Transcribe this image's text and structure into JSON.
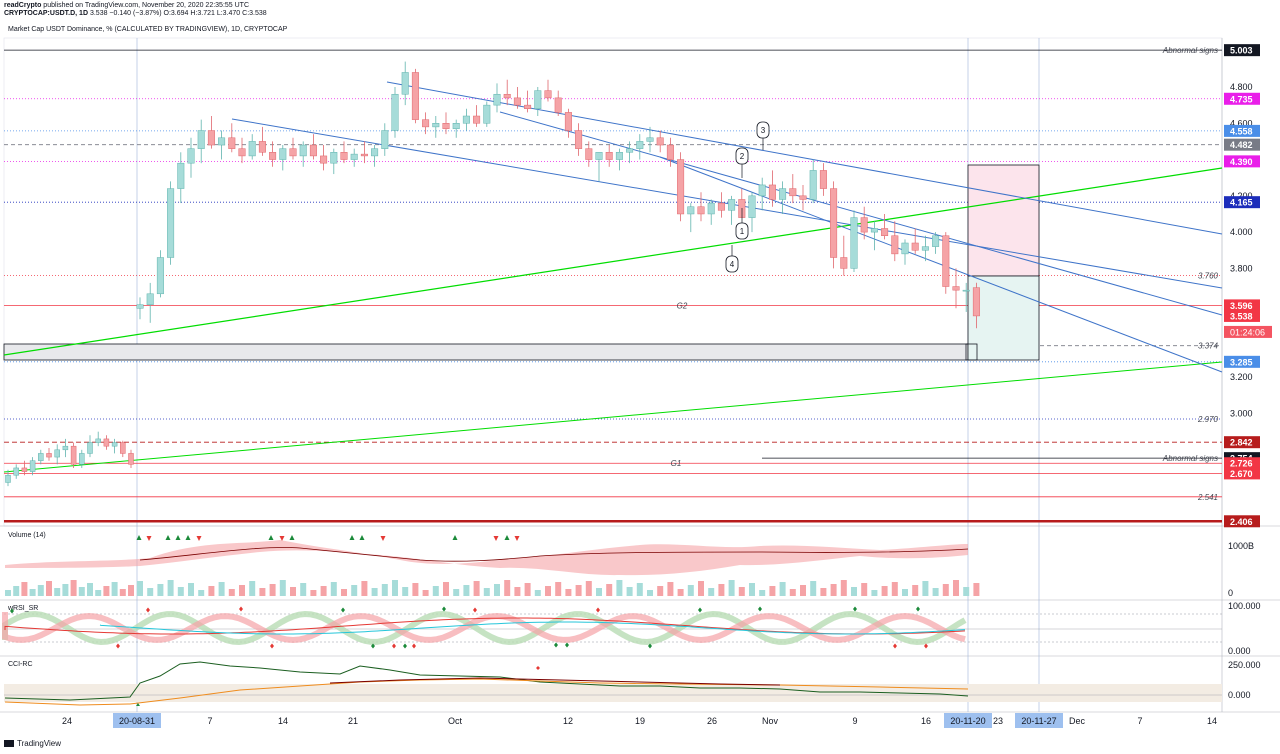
{
  "header": {
    "author": "readCrypto",
    "published_text": "published on TradingView.com, November 20, 2020 22:35:55 UTC",
    "symbol": "CRYPTOCAP:USDT.D, 1D",
    "ohlc_text": "3.538  −0.140 (−3.87%)  O:3.694  H:3.721  L:3.470  C:3.538"
  },
  "symbol_title": "Market Cap USDT Dominance, % (CALCULATED BY TRADINGVIEW), 1D, CRYPTOCAP",
  "colors": {
    "up": "#a6dcd9",
    "down": "#f5a3a6",
    "green_line": "#00dd00",
    "blue_line": "#3f74c9",
    "price_tag": "#f23645",
    "magenta": "#e91ee9",
    "blue_tag": "#4a8ee8"
  },
  "chart_data": {
    "type": "candlestick",
    "timeframe": "1D",
    "ylim": [
      2.38,
      5.07
    ],
    "x_ticks": [
      "24",
      "20-08-31",
      "7",
      "14",
      "21",
      "Oct",
      "12",
      "19",
      "26",
      "Nov",
      "9",
      "16",
      "20-11-20",
      "23",
      "20-11-27",
      "Dec",
      "7",
      "14"
    ],
    "last_price": 3.538,
    "countdown": "01:24:06",
    "price_axis_labels": [
      "4.800",
      "4.600",
      "4.200",
      "4.000",
      "3.800",
      "3.200",
      "3.000"
    ],
    "price_levels": [
      {
        "value": 5.003,
        "label": "5.003",
        "note": "Abnormal signs",
        "color": "#131722"
      },
      {
        "value": 4.735,
        "label": "4.735",
        "note": "",
        "color": "#e91ee9"
      },
      {
        "value": 4.558,
        "label": "4.558",
        "note": "",
        "color": "#4a8ee8"
      },
      {
        "value": 4.482,
        "label": "4.482",
        "note": "",
        "color": "#787b86"
      },
      {
        "value": 4.39,
        "label": "4.390",
        "note": "",
        "color": "#e91ee9"
      },
      {
        "value": 4.165,
        "label": "4.165",
        "note": "",
        "color": "#1c2dbb"
      },
      {
        "value": 3.76,
        "label": "",
        "note": "3.760",
        "color": "#f23645"
      },
      {
        "value": 3.596,
        "label": "3.596",
        "note": "G2",
        "color": "#f23645"
      },
      {
        "value": 3.374,
        "label": "",
        "note": "3.374",
        "color": "#787b86"
      },
      {
        "value": 3.285,
        "label": "3.285",
        "note": "",
        "color": "#4a8ee8"
      },
      {
        "value": 2.97,
        "label": "",
        "note": "2.970",
        "color": "#1c2dbb"
      },
      {
        "value": 2.842,
        "label": "2.842",
        "note": "",
        "color": "#b71c1c"
      },
      {
        "value": 2.754,
        "label": "2.754",
        "note": "Abnormal signs",
        "color": "#131722"
      },
      {
        "value": 2.726,
        "label": "2.726",
        "note": "G1",
        "color": "#f23645"
      },
      {
        "value": 2.67,
        "label": "2.670",
        "note": "",
        "color": "#f23645"
      },
      {
        "value": 2.541,
        "label": "",
        "note": "2.541",
        "color": "#f23645"
      },
      {
        "value": 2.406,
        "label": "2.406",
        "note": "",
        "color": "#b71c1c"
      }
    ],
    "wave_labels": [
      "1",
      "2",
      "3",
      "4"
    ],
    "candles": [
      [
        2.62,
        2.69,
        2.6,
        2.66
      ],
      [
        2.66,
        2.72,
        2.64,
        2.7
      ],
      [
        2.7,
        2.74,
        2.66,
        2.68
      ],
      [
        2.68,
        2.76,
        2.66,
        2.74
      ],
      [
        2.74,
        2.8,
        2.72,
        2.78
      ],
      [
        2.78,
        2.81,
        2.74,
        2.76
      ],
      [
        2.76,
        2.83,
        2.72,
        2.8
      ],
      [
        2.8,
        2.86,
        2.76,
        2.82
      ],
      [
        2.82,
        2.84,
        2.7,
        2.72
      ],
      [
        2.72,
        2.8,
        2.7,
        2.78
      ],
      [
        2.78,
        2.88,
        2.76,
        2.84
      ],
      [
        2.84,
        2.9,
        2.82,
        2.86
      ],
      [
        2.86,
        2.88,
        2.8,
        2.82
      ],
      [
        2.82,
        2.86,
        2.78,
        2.84
      ],
      [
        2.84,
        2.85,
        2.76,
        2.78
      ],
      [
        2.78,
        2.8,
        2.7,
        2.72
      ],
      [
        3.58,
        3.64,
        3.52,
        3.6
      ],
      [
        3.6,
        3.72,
        3.5,
        3.66
      ],
      [
        3.66,
        3.9,
        3.64,
        3.86
      ],
      [
        3.86,
        4.28,
        3.82,
        4.24
      ],
      [
        4.24,
        4.44,
        4.16,
        4.38
      ],
      [
        4.38,
        4.52,
        4.3,
        4.46
      ],
      [
        4.46,
        4.62,
        4.38,
        4.56
      ],
      [
        4.56,
        4.64,
        4.46,
        4.48
      ],
      [
        4.48,
        4.56,
        4.4,
        4.52
      ],
      [
        4.52,
        4.6,
        4.44,
        4.46
      ],
      [
        4.46,
        4.52,
        4.38,
        4.42
      ],
      [
        4.42,
        4.54,
        4.4,
        4.5
      ],
      [
        4.5,
        4.58,
        4.42,
        4.44
      ],
      [
        4.44,
        4.5,
        4.36,
        4.4
      ],
      [
        4.4,
        4.48,
        4.34,
        4.46
      ],
      [
        4.46,
        4.52,
        4.4,
        4.42
      ],
      [
        4.42,
        4.5,
        4.36,
        4.48
      ],
      [
        4.48,
        4.54,
        4.4,
        4.42
      ],
      [
        4.42,
        4.48,
        4.34,
        4.38
      ],
      [
        4.38,
        4.46,
        4.32,
        4.44
      ],
      [
        4.44,
        4.5,
        4.38,
        4.4
      ],
      [
        4.4,
        4.46,
        4.36,
        4.43
      ],
      [
        4.43,
        4.5,
        4.38,
        4.42
      ],
      [
        4.42,
        4.48,
        4.36,
        4.46
      ],
      [
        4.46,
        4.6,
        4.42,
        4.56
      ],
      [
        4.56,
        4.8,
        4.52,
        4.76
      ],
      [
        4.76,
        4.94,
        4.7,
        4.88
      ],
      [
        4.88,
        4.9,
        4.6,
        4.62
      ],
      [
        4.62,
        4.66,
        4.54,
        4.58
      ],
      [
        4.58,
        4.64,
        4.52,
        4.6
      ],
      [
        4.6,
        4.66,
        4.54,
        4.57
      ],
      [
        4.57,
        4.62,
        4.52,
        4.6
      ],
      [
        4.6,
        4.68,
        4.56,
        4.64
      ],
      [
        4.64,
        4.7,
        4.58,
        4.6
      ],
      [
        4.6,
        4.72,
        4.58,
        4.7
      ],
      [
        4.7,
        4.82,
        4.66,
        4.76
      ],
      [
        4.76,
        4.84,
        4.7,
        4.74
      ],
      [
        4.74,
        4.8,
        4.68,
        4.7
      ],
      [
        4.7,
        4.78,
        4.66,
        4.68
      ],
      [
        4.68,
        4.8,
        4.64,
        4.78
      ],
      [
        4.78,
        4.84,
        4.72,
        4.74
      ],
      [
        4.74,
        4.78,
        4.64,
        4.66
      ],
      [
        4.66,
        4.68,
        4.52,
        4.56
      ],
      [
        4.56,
        4.6,
        4.42,
        4.46
      ],
      [
        4.46,
        4.5,
        4.36,
        4.4
      ],
      [
        4.4,
        4.44,
        4.28,
        4.44
      ],
      [
        4.44,
        4.48,
        4.36,
        4.4
      ],
      [
        4.4,
        4.46,
        4.34,
        4.44
      ],
      [
        4.44,
        4.5,
        4.38,
        4.46
      ],
      [
        4.46,
        4.54,
        4.4,
        4.5
      ],
      [
        4.5,
        4.58,
        4.44,
        4.52
      ],
      [
        4.52,
        4.56,
        4.44,
        4.48
      ],
      [
        4.48,
        4.52,
        4.36,
        4.4
      ],
      [
        4.4,
        4.44,
        4.06,
        4.1
      ],
      [
        4.1,
        4.16,
        4.0,
        4.14
      ],
      [
        4.14,
        4.22,
        4.06,
        4.1
      ],
      [
        4.1,
        4.18,
        4.04,
        4.16
      ],
      [
        4.16,
        4.22,
        4.08,
        4.12
      ],
      [
        4.12,
        4.2,
        4.04,
        4.18
      ],
      [
        4.18,
        4.24,
        4.1,
        4.08
      ],
      [
        4.08,
        4.22,
        4.0,
        4.2
      ],
      [
        4.2,
        4.3,
        4.12,
        4.26
      ],
      [
        4.26,
        4.34,
        4.14,
        4.18
      ],
      [
        4.18,
        4.28,
        4.1,
        4.24
      ],
      [
        4.24,
        4.32,
        4.16,
        4.2
      ],
      [
        4.2,
        4.26,
        4.12,
        4.18
      ],
      [
        4.18,
        4.4,
        4.16,
        4.34
      ],
      [
        4.34,
        4.38,
        4.2,
        4.24
      ],
      [
        4.24,
        4.28,
        3.8,
        3.86
      ],
      [
        3.86,
        3.98,
        3.76,
        3.8
      ],
      [
        3.8,
        4.12,
        3.78,
        4.08
      ],
      [
        4.08,
        4.14,
        3.96,
        4.0
      ],
      [
        4.0,
        4.06,
        3.9,
        4.02
      ],
      [
        4.02,
        4.1,
        3.96,
        3.98
      ],
      [
        3.98,
        4.06,
        3.84,
        3.88
      ],
      [
        3.88,
        3.96,
        3.82,
        3.94
      ],
      [
        3.94,
        4.02,
        3.88,
        3.9
      ],
      [
        3.9,
        3.98,
        3.84,
        3.92
      ],
      [
        3.92,
        4.0,
        3.88,
        3.98
      ],
      [
        3.98,
        4.0,
        3.66,
        3.7
      ],
      [
        3.7,
        3.8,
        3.58,
        3.68
      ],
      [
        3.68,
        3.72,
        3.56,
        3.68
      ],
      [
        3.694,
        3.721,
        3.47,
        3.538
      ]
    ]
  },
  "volume_pane": {
    "title": "Volume (14)",
    "axis_labels": [
      "1000B",
      "0"
    ]
  },
  "wrsi_pane": {
    "title": "wRSI_SR",
    "axis_labels": [
      "100.000",
      "0.000"
    ]
  },
  "cci_pane": {
    "title": "CCI-RC",
    "axis_labels": [
      "250.000",
      "0.000"
    ]
  },
  "footer": {
    "brand": "TradingView"
  }
}
